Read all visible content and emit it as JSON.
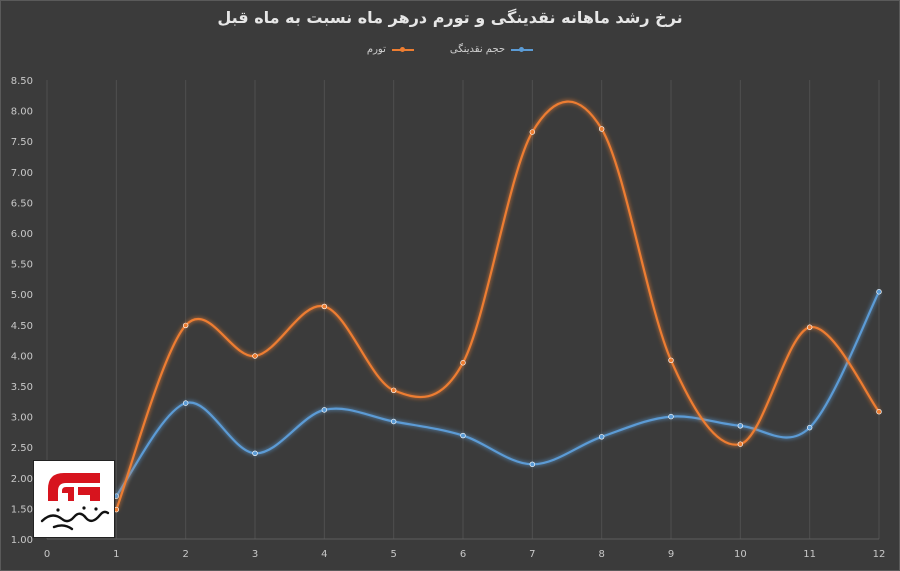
{
  "chart_data": {
    "type": "line",
    "title": "نرخ رشد ماهانه نقدینگی و تورم درهر ماه نسبت به ماه قبل",
    "xlabel": "",
    "ylabel": "",
    "x": [
      1,
      2,
      3,
      4,
      5,
      6,
      7,
      8,
      9,
      10,
      11,
      12
    ],
    "xlim": [
      0,
      12
    ],
    "ylim": [
      1.0,
      8.5
    ],
    "x_ticks": [
      "0",
      "1",
      "2",
      "3",
      "4",
      "5",
      "6",
      "7",
      "8",
      "9",
      "10",
      "11",
      "12"
    ],
    "y_ticks": [
      "1.00",
      "1.50",
      "2.00",
      "2.50",
      "3.00",
      "3.50",
      "4.00",
      "4.50",
      "5.00",
      "5.50",
      "6.00",
      "6.50",
      "7.00",
      "7.50",
      "8.00",
      "8.50"
    ],
    "grid": "vertical",
    "legend_position": "top",
    "smooth": true,
    "series": [
      {
        "name": "حجم نقدینگی",
        "color": "#5b9bd5",
        "values": [
          1.7,
          3.22,
          2.4,
          3.11,
          2.92,
          2.69,
          2.22,
          2.67,
          3.0,
          2.85,
          2.82,
          5.04
        ]
      },
      {
        "name": "تورم",
        "color": "#ed7d31",
        "values": [
          1.48,
          4.49,
          3.99,
          4.8,
          3.43,
          3.88,
          7.65,
          7.7,
          3.92,
          2.55,
          4.46,
          3.08
        ]
      }
    ]
  },
  "logo": {
    "name": "news-agency-logo",
    "text": "خبرگزاری مهر",
    "color": "#d7141e"
  }
}
